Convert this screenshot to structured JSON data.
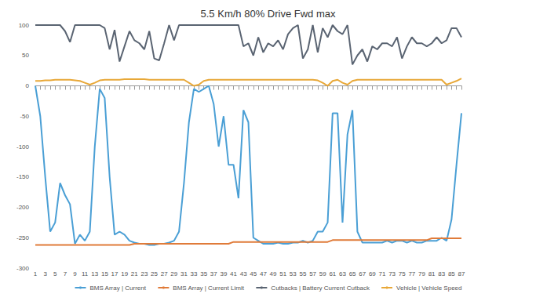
{
  "chart_data": {
    "type": "line",
    "title": "5.5 Km/h 80% Drive Fwd max",
    "categories": [
      "1",
      null,
      "3",
      null,
      "5",
      null,
      "7",
      null,
      "9",
      null,
      "11",
      null,
      "13",
      null,
      "15",
      null,
      "17",
      null,
      "19",
      null,
      "21",
      null,
      "23",
      null,
      "25",
      null,
      "27",
      null,
      "29",
      null,
      "31",
      null,
      "33",
      null,
      "35",
      null,
      "37",
      null,
      "39",
      null,
      "41",
      null,
      "43",
      null,
      "45",
      null,
      "47",
      null,
      "49",
      null,
      "51",
      null,
      "53",
      null,
      "55",
      null,
      "57",
      null,
      "59",
      null,
      "61",
      null,
      "63",
      null,
      "65",
      null,
      "67",
      null,
      "69",
      null,
      "71",
      null,
      "73",
      null,
      "75",
      null,
      "77",
      null,
      "79",
      null,
      "81",
      null,
      "83",
      null,
      "85",
      null,
      "87"
    ],
    "series": [
      {
        "name": "BMS Array | Current",
        "color": "#4a9fd5",
        "values": [
          0,
          -50,
          -150,
          -240,
          -225,
          -160,
          -180,
          -195,
          -260,
          -245,
          -255,
          -240,
          -100,
          -5,
          -20,
          -150,
          -245,
          -240,
          -245,
          -255,
          -258,
          -260,
          -260,
          -262,
          -262,
          -260,
          -260,
          -258,
          -255,
          -240,
          -160,
          -60,
          -5,
          -10,
          -5,
          0,
          -30,
          -100,
          -50,
          -130,
          -130,
          -185,
          -40,
          -60,
          -250,
          -255,
          -260,
          -260,
          -260,
          -258,
          -260,
          -260,
          -258,
          -258,
          -255,
          -258,
          -255,
          -240,
          -240,
          -225,
          -45,
          -45,
          -225,
          -80,
          -40,
          -240,
          -258,
          -258,
          -258,
          -258,
          -258,
          -255,
          -258,
          -255,
          -255,
          -258,
          -255,
          -258,
          -258,
          -255,
          -255,
          -255,
          -250,
          -255,
          -220,
          -130,
          -45
        ]
      },
      {
        "name": "BMS Array | Current Limit",
        "color": "#e07b39",
        "values": [
          -262,
          -262,
          -262,
          -262,
          -262,
          -262,
          -262,
          -262,
          -262,
          -262,
          -262,
          -262,
          -262,
          -262,
          -262,
          -262,
          -262,
          -262,
          -262,
          -262,
          -260,
          -260,
          -260,
          -260,
          -260,
          -260,
          -260,
          -260,
          -260,
          -260,
          -260,
          -260,
          -260,
          -260,
          -260,
          -260,
          -260,
          -260,
          -260,
          -260,
          -257,
          -257,
          -257,
          -257,
          -257,
          -257,
          -257,
          -257,
          -257,
          -257,
          -257,
          -257,
          -257,
          -257,
          -257,
          -257,
          -257,
          -257,
          -257,
          -257,
          -254,
          -254,
          -254,
          -254,
          -254,
          -254,
          -254,
          -254,
          -254,
          -254,
          -254,
          -254,
          -254,
          -254,
          -254,
          -254,
          -254,
          -254,
          -254,
          -254,
          -251,
          -251,
          -251,
          -251,
          -251,
          -251,
          -251
        ]
      },
      {
        "name": "Cutbacks | Battery Current Cutback",
        "color": "#5a6472",
        "values": [
          100,
          100,
          100,
          100,
          100,
          100,
          90,
          72,
          100,
          100,
          100,
          100,
          100,
          100,
          95,
          60,
          92,
          40,
          65,
          90,
          75,
          70,
          60,
          90,
          45,
          42,
          70,
          100,
          75,
          100,
          100,
          100,
          100,
          100,
          100,
          100,
          100,
          100,
          100,
          100,
          100,
          100,
          65,
          70,
          50,
          80,
          55,
          70,
          65,
          75,
          60,
          85,
          95,
          100,
          45,
          60,
          100,
          55,
          95,
          80,
          100,
          90,
          85,
          100,
          35,
          50,
          60,
          40,
          65,
          60,
          70,
          70,
          65,
          80,
          45,
          65,
          80,
          70,
          70,
          65,
          70,
          80,
          70,
          75,
          95,
          95,
          80
        ]
      },
      {
        "name": "Vehicle | Vehicle Speed",
        "color": "#e8a838",
        "values": [
          8,
          8,
          9,
          9,
          10,
          10,
          10,
          10,
          9,
          8,
          5,
          2,
          5,
          9,
          10,
          10,
          10,
          10,
          11,
          11,
          11,
          11,
          11,
          10,
          10,
          10,
          10,
          10,
          10,
          10,
          10,
          5,
          0,
          2,
          8,
          10,
          10,
          10,
          10,
          10,
          10,
          10,
          10,
          10,
          10,
          10,
          10,
          10,
          10,
          10,
          10,
          10,
          10,
          10,
          10,
          10,
          10,
          9,
          5,
          0,
          8,
          10,
          5,
          2,
          8,
          10,
          10,
          10,
          10,
          10,
          10,
          10,
          10,
          10,
          10,
          10,
          10,
          10,
          10,
          10,
          10,
          10,
          10,
          2,
          5,
          8,
          12
        ]
      }
    ],
    "ylim": [
      -300,
      100
    ],
    "yticks": [
      -300,
      -250,
      -200,
      -150,
      -100,
      -50,
      0,
      50,
      100
    ],
    "grid": false,
    "legend": "bottom",
    "marker": "none"
  }
}
